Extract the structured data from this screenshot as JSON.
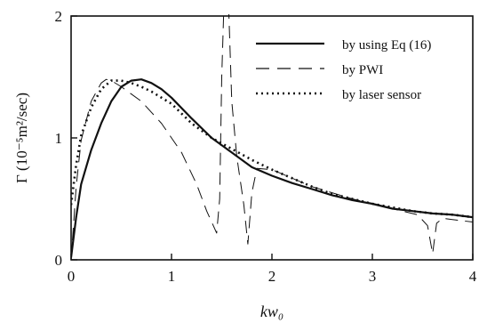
{
  "chart_data": {
    "type": "line",
    "xlabel": "kw₀",
    "ylabel": "Γ (10⁻⁵m²/sec)",
    "xlim": [
      0,
      4
    ],
    "ylim": [
      0,
      2
    ],
    "x_ticks": [
      "0",
      "1",
      "2",
      "3",
      "4"
    ],
    "y_ticks": [
      "0",
      "1",
      "2"
    ],
    "legend_position": "top-right",
    "series": [
      {
        "name": "by using Eq (16)",
        "style": "solid",
        "points": [
          [
            0,
            0.02
          ],
          [
            0.05,
            0.35
          ],
          [
            0.1,
            0.62
          ],
          [
            0.2,
            0.9
          ],
          [
            0.3,
            1.12
          ],
          [
            0.4,
            1.3
          ],
          [
            0.5,
            1.42
          ],
          [
            0.6,
            1.47
          ],
          [
            0.7,
            1.48
          ],
          [
            0.8,
            1.45
          ],
          [
            0.9,
            1.4
          ],
          [
            1.0,
            1.33
          ],
          [
            1.2,
            1.16
          ],
          [
            1.4,
            1.0
          ],
          [
            1.6,
            0.88
          ],
          [
            1.8,
            0.76
          ],
          [
            2.0,
            0.69
          ],
          [
            2.2,
            0.63
          ],
          [
            2.4,
            0.58
          ],
          [
            2.6,
            0.53
          ],
          [
            2.8,
            0.49
          ],
          [
            3.0,
            0.46
          ],
          [
            3.2,
            0.42
          ],
          [
            3.4,
            0.4
          ],
          [
            3.6,
            0.38
          ],
          [
            3.8,
            0.37
          ],
          [
            4.0,
            0.35
          ]
        ]
      },
      {
        "name": "by PWI",
        "style": "dashed",
        "points": [
          [
            0,
            0.0
          ],
          [
            0.05,
            0.6
          ],
          [
            0.1,
            0.98
          ],
          [
            0.2,
            1.3
          ],
          [
            0.3,
            1.45
          ],
          [
            0.35,
            1.48
          ],
          [
            0.4,
            1.47
          ],
          [
            0.5,
            1.42
          ],
          [
            0.7,
            1.3
          ],
          [
            0.9,
            1.12
          ],
          [
            1.1,
            0.88
          ],
          [
            1.25,
            0.62
          ],
          [
            1.35,
            0.4
          ],
          [
            1.45,
            0.22
          ],
          [
            1.48,
            0.5
          ],
          [
            1.5,
            1.5
          ],
          [
            1.52,
            2.05
          ],
          [
            1.57,
            2.05
          ],
          [
            1.6,
            1.3
          ],
          [
            1.65,
            0.85
          ],
          [
            1.72,
            0.45
          ],
          [
            1.76,
            0.13
          ],
          [
            1.8,
            0.55
          ],
          [
            1.85,
            0.75
          ],
          [
            2.0,
            0.74
          ],
          [
            2.4,
            0.6
          ],
          [
            2.8,
            0.5
          ],
          [
            3.2,
            0.42
          ],
          [
            3.45,
            0.37
          ],
          [
            3.55,
            0.28
          ],
          [
            3.6,
            0.05
          ],
          [
            3.64,
            0.3
          ],
          [
            3.7,
            0.34
          ],
          [
            4.0,
            0.31
          ]
        ]
      },
      {
        "name": "by laser sensor",
        "style": "dotted",
        "points": [
          [
            0,
            0.45
          ],
          [
            0.05,
            0.78
          ],
          [
            0.1,
            1.02
          ],
          [
            0.2,
            1.25
          ],
          [
            0.3,
            1.4
          ],
          [
            0.4,
            1.47
          ],
          [
            0.5,
            1.47
          ],
          [
            0.6,
            1.45
          ],
          [
            0.7,
            1.42
          ],
          [
            0.8,
            1.38
          ],
          [
            1.0,
            1.28
          ],
          [
            1.2,
            1.12
          ],
          [
            1.4,
            1.0
          ],
          [
            1.6,
            0.91
          ],
          [
            1.8,
            0.82
          ],
          [
            2.0,
            0.74
          ],
          [
            2.2,
            0.67
          ],
          [
            2.4,
            0.6
          ],
          [
            2.6,
            0.54
          ],
          [
            2.8,
            0.5
          ],
          [
            3.0,
            0.46
          ],
          [
            3.2,
            0.43
          ],
          [
            3.4,
            0.4
          ],
          [
            3.6,
            0.38
          ],
          [
            3.8,
            0.37
          ],
          [
            4.0,
            0.35
          ]
        ]
      }
    ]
  }
}
